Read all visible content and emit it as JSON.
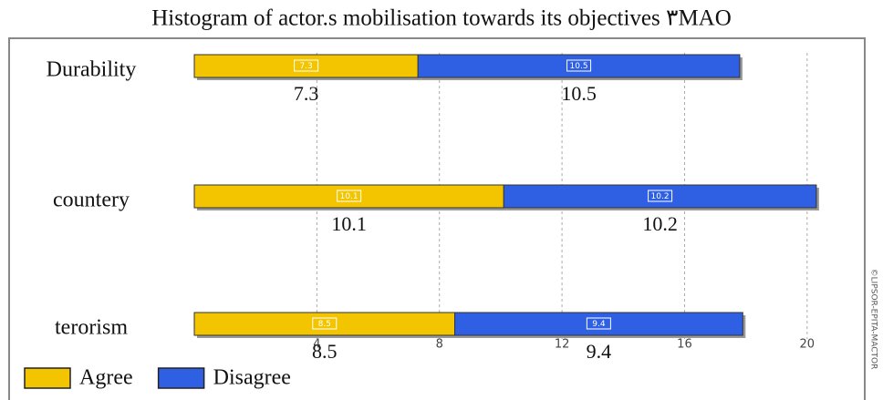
{
  "chart_data": {
    "type": "stacked-bar-horizontal",
    "title": "Histogram of actor.s mobilisation towards its objectives ٣MAO",
    "categories": [
      "Durability",
      "countery",
      "terorism"
    ],
    "series": [
      {
        "name": "Agree",
        "color": "#f2c500",
        "values": [
          7.3,
          10.1,
          8.5
        ]
      },
      {
        "name": "Disagree",
        "color": "#2f60e3",
        "values": [
          10.5,
          10.2,
          9.4
        ]
      }
    ],
    "xlim": [
      0,
      22
    ],
    "xticks": [
      4,
      8,
      12,
      16,
      20
    ],
    "grid": true,
    "legend": "bottom-left",
    "watermark": "©LIPSOR-EPITA-MACTOR"
  }
}
